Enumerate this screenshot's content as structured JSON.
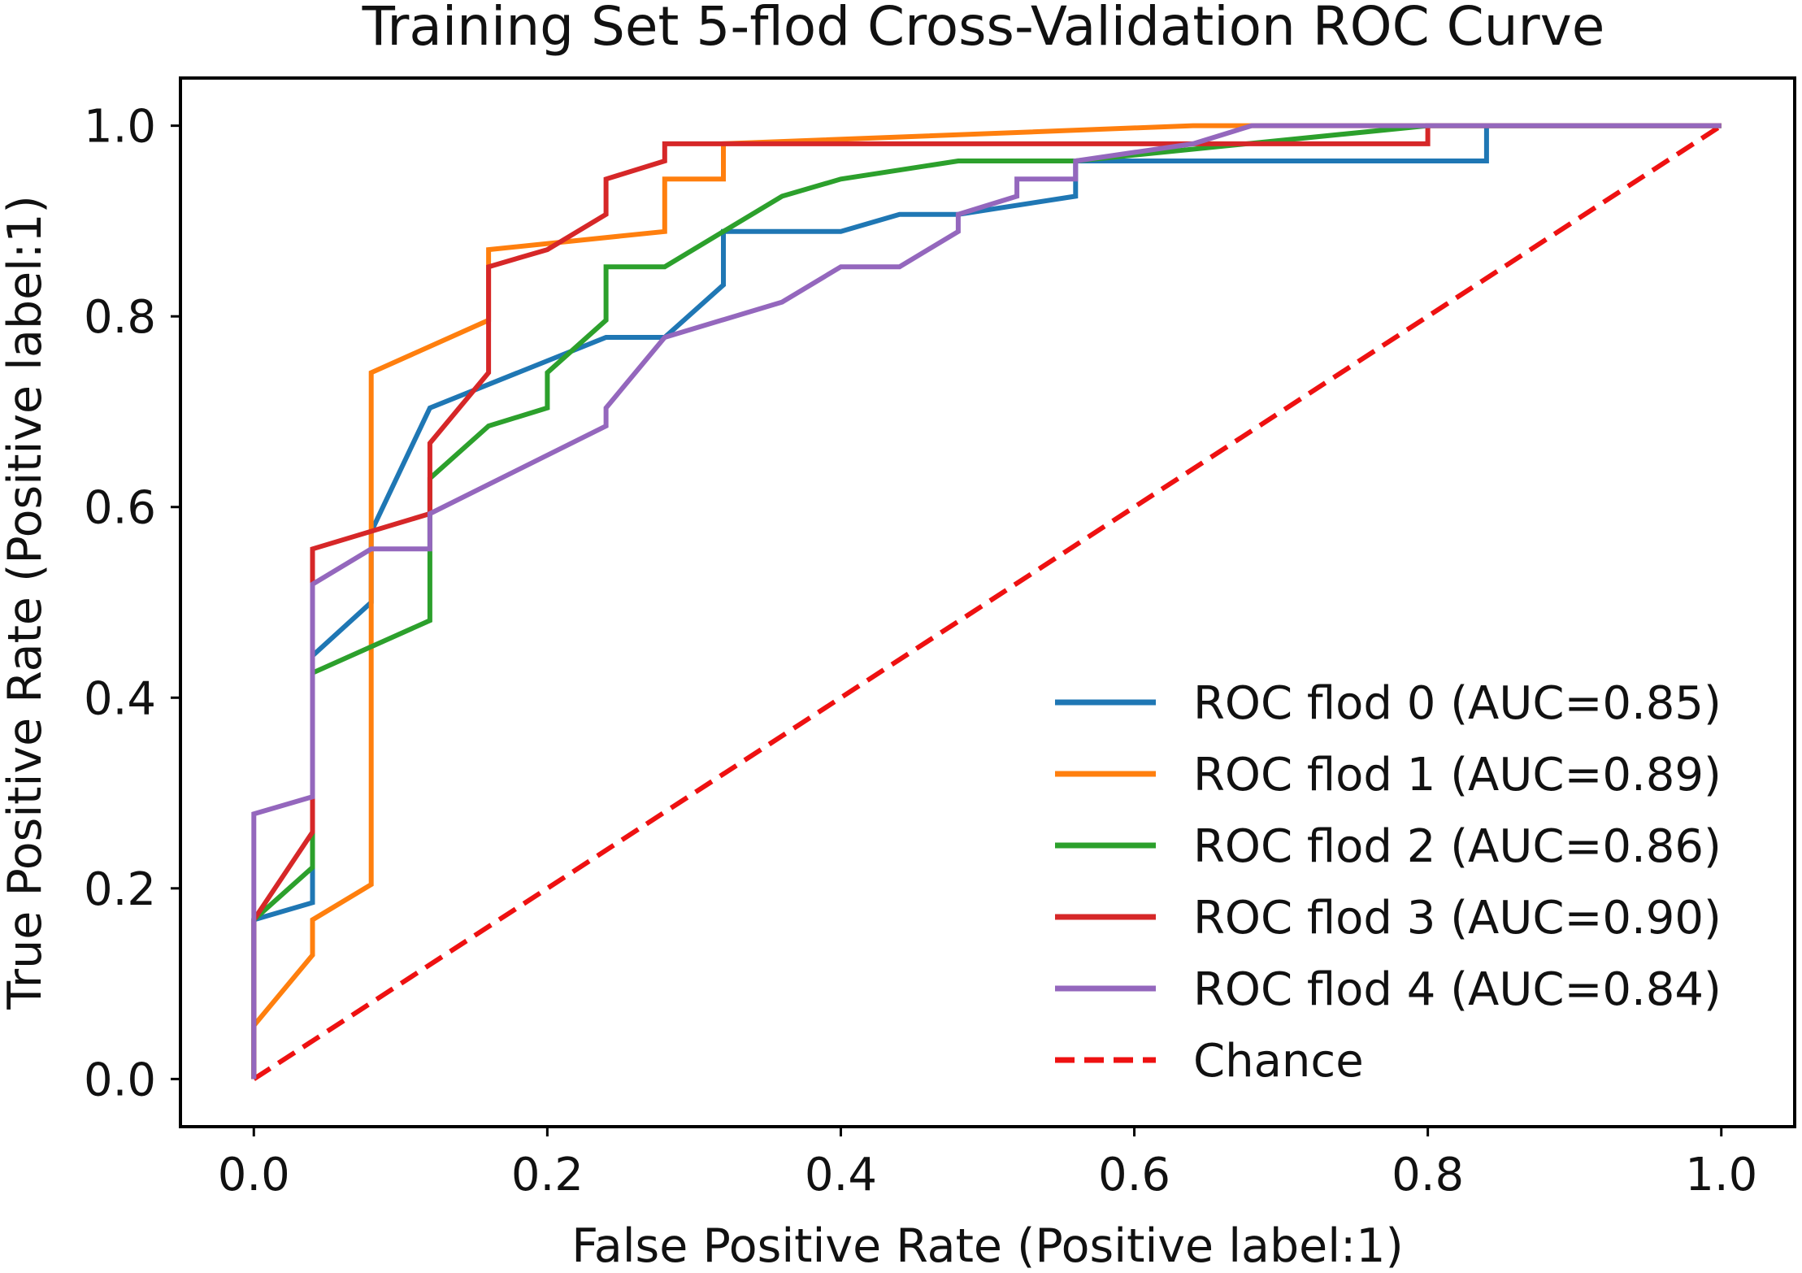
{
  "chart_data": {
    "type": "line",
    "title": "Training Set 5-flod Cross-Validation ROC Curve",
    "xlabel": "False Positive Rate (Positive label:1)",
    "ylabel": "True Positive Rate (Positive label:1)",
    "xlim": [
      -0.05,
      1.05
    ],
    "ylim": [
      -0.05,
      1.05
    ],
    "xticks": [
      0.0,
      0.2,
      0.4,
      0.6,
      0.8,
      1.0
    ],
    "yticks": [
      0.0,
      0.2,
      0.4,
      0.6,
      0.8,
      1.0
    ],
    "xtick_labels": [
      "0.0",
      "0.2",
      "0.4",
      "0.6",
      "0.8",
      "1.0"
    ],
    "ytick_labels": [
      "0.0",
      "0.2",
      "0.4",
      "0.6",
      "0.8",
      "1.0"
    ],
    "legend_position": "lower-right",
    "grid": false,
    "series": [
      {
        "name": "ROC flod 0 (AUC=0.85)",
        "color": "#1f77b4",
        "dash": false,
        "x": [
          0,
          0,
          0.04,
          0.04,
          0.08,
          0.08,
          0.12,
          0.24,
          0.28,
          0.32,
          0.32,
          0.4,
          0.44,
          0.48,
          0.56,
          0.56,
          0.84,
          0.84,
          1.0
        ],
        "y": [
          0,
          0.167,
          0.185,
          0.444,
          0.5,
          0.574,
          0.704,
          0.778,
          0.778,
          0.833,
          0.889,
          0.889,
          0.907,
          0.907,
          0.926,
          0.963,
          0.963,
          1.0,
          1.0
        ]
      },
      {
        "name": "ROC flod 1 (AUC=0.89)",
        "color": "#ff7f0e",
        "dash": false,
        "x": [
          0,
          0,
          0.04,
          0.04,
          0.08,
          0.08,
          0.16,
          0.16,
          0.28,
          0.28,
          0.32,
          0.32,
          0.64,
          1.0
        ],
        "y": [
          0,
          0.056,
          0.13,
          0.167,
          0.204,
          0.741,
          0.796,
          0.87,
          0.889,
          0.944,
          0.944,
          0.981,
          1.0,
          1.0
        ]
      },
      {
        "name": "ROC flod 2 (AUC=0.86)",
        "color": "#2ca02c",
        "dash": false,
        "x": [
          0,
          0,
          0.04,
          0.04,
          0.12,
          0.12,
          0.16,
          0.2,
          0.2,
          0.24,
          0.24,
          0.28,
          0.36,
          0.4,
          0.48,
          0.56,
          0.8,
          1.0
        ],
        "y": [
          0,
          0.167,
          0.222,
          0.426,
          0.481,
          0.63,
          0.685,
          0.704,
          0.741,
          0.796,
          0.852,
          0.852,
          0.926,
          0.944,
          0.963,
          0.963,
          1.0,
          1.0
        ]
      },
      {
        "name": "ROC flod 3 (AUC=0.90)",
        "color": "#d62728",
        "dash": false,
        "x": [
          0,
          0,
          0.04,
          0.04,
          0.12,
          0.12,
          0.16,
          0.16,
          0.2,
          0.24,
          0.24,
          0.28,
          0.28,
          0.8,
          0.8,
          1.0
        ],
        "y": [
          0,
          0.167,
          0.259,
          0.556,
          0.593,
          0.667,
          0.741,
          0.852,
          0.87,
          0.907,
          0.944,
          0.963,
          0.981,
          0.981,
          1.0,
          1.0
        ]
      },
      {
        "name": "ROC flod 4 (AUC=0.84)",
        "color": "#9467bd",
        "dash": false,
        "x": [
          0,
          0,
          0.04,
          0.04,
          0.08,
          0.12,
          0.12,
          0.24,
          0.24,
          0.28,
          0.36,
          0.4,
          0.44,
          0.48,
          0.48,
          0.52,
          0.52,
          0.56,
          0.56,
          0.64,
          0.68,
          1.0
        ],
        "y": [
          0,
          0.278,
          0.296,
          0.519,
          0.556,
          0.556,
          0.593,
          0.685,
          0.704,
          0.778,
          0.815,
          0.852,
          0.852,
          0.889,
          0.907,
          0.926,
          0.944,
          0.944,
          0.963,
          0.981,
          1.0,
          1.0
        ]
      },
      {
        "name": "Chance",
        "color": "#ee1111",
        "dash": true,
        "x": [
          0,
          1
        ],
        "y": [
          0,
          1
        ]
      }
    ]
  }
}
